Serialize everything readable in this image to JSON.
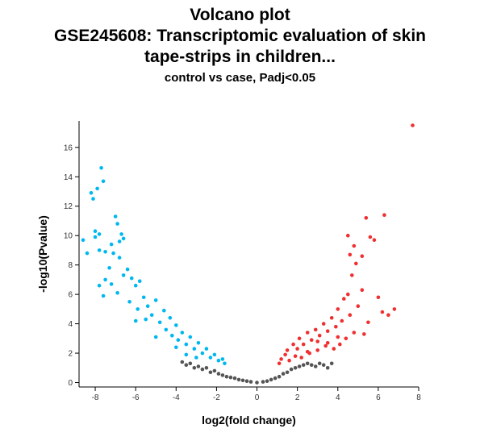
{
  "header": {
    "title_line1": "Volcano plot",
    "title_line2": "GSE245608: Transcriptomic evaluation of skin",
    "title_line3": "tape-strips in children...",
    "subtitle": "control vs case, Padj<0.05"
  },
  "chart_data": {
    "type": "scatter",
    "title": "Volcano plot GSE245608: Transcriptomic evaluation of skin tape-strips in children...",
    "subtitle": "control vs case, Padj<0.05",
    "xlabel": "log2(fold change)",
    "ylabel": "-log10(Pvalue)",
    "xlim": [
      -8.8,
      8.0
    ],
    "ylim": [
      -0.3,
      17.8
    ],
    "xticks": [
      -8,
      -6,
      -4,
      -2,
      0,
      2,
      4,
      6,
      8
    ],
    "yticks": [
      0,
      2,
      4,
      6,
      8,
      10,
      12,
      14,
      16
    ],
    "grid": false,
    "legend": "none",
    "colors": {
      "down": "#00b8f0",
      "up": "#f03030",
      "ns": "#555555"
    },
    "series": [
      {
        "group": "down",
        "points": [
          [
            -8.6,
            9.7
          ],
          [
            -8.4,
            8.8
          ],
          [
            -8.2,
            12.9
          ],
          [
            -8.1,
            12.5
          ],
          [
            -8.0,
            10.3
          ],
          [
            -8.0,
            9.9
          ],
          [
            -7.9,
            13.2
          ],
          [
            -7.8,
            10.1
          ],
          [
            -7.8,
            9.0
          ],
          [
            -7.7,
            14.6
          ],
          [
            -7.6,
            13.7
          ],
          [
            -7.5,
            8.9
          ],
          [
            -7.2,
            9.4
          ],
          [
            -7.1,
            8.8
          ],
          [
            -7.0,
            11.3
          ],
          [
            -6.9,
            10.8
          ],
          [
            -6.8,
            9.6
          ],
          [
            -6.8,
            8.5
          ],
          [
            -6.7,
            10.1
          ],
          [
            -6.6,
            9.8
          ],
          [
            -6.6,
            7.3
          ],
          [
            -7.2,
            6.7
          ],
          [
            -7.3,
            7.8
          ],
          [
            -7.5,
            7.0
          ],
          [
            -6.9,
            6.1
          ],
          [
            -7.6,
            5.9
          ],
          [
            -7.8,
            6.6
          ],
          [
            -6.4,
            7.7
          ],
          [
            -6.2,
            7.1
          ],
          [
            -6.3,
            5.5
          ],
          [
            -6.0,
            6.6
          ],
          [
            -5.8,
            6.9
          ],
          [
            -5.9,
            5.0
          ],
          [
            -5.6,
            5.8
          ],
          [
            -5.4,
            5.2
          ],
          [
            -5.2,
            4.6
          ],
          [
            -5.5,
            4.3
          ],
          [
            -5.0,
            5.6
          ],
          [
            -4.8,
            4.1
          ],
          [
            -4.6,
            4.9
          ],
          [
            -4.5,
            3.6
          ],
          [
            -4.3,
            4.4
          ],
          [
            -4.2,
            3.2
          ],
          [
            -4.0,
            3.9
          ],
          [
            -3.9,
            2.9
          ],
          [
            -3.7,
            3.4
          ],
          [
            -3.5,
            2.6
          ],
          [
            -3.3,
            3.1
          ],
          [
            -3.1,
            2.3
          ],
          [
            -2.9,
            2.7
          ],
          [
            -2.7,
            2.0
          ],
          [
            -2.5,
            2.3
          ],
          [
            -2.3,
            1.7
          ],
          [
            -2.1,
            1.9
          ],
          [
            -1.9,
            1.5
          ],
          [
            -1.7,
            1.6
          ],
          [
            -1.6,
            1.3
          ],
          [
            -6.0,
            4.2
          ],
          [
            -5.0,
            3.1
          ],
          [
            -4.0,
            2.4
          ],
          [
            -3.5,
            1.9
          ],
          [
            -3.0,
            1.7
          ]
        ]
      },
      {
        "group": "up",
        "points": [
          [
            1.1,
            1.3
          ],
          [
            1.2,
            1.6
          ],
          [
            1.4,
            1.9
          ],
          [
            1.5,
            2.2
          ],
          [
            1.6,
            1.5
          ],
          [
            1.8,
            2.6
          ],
          [
            1.9,
            1.8
          ],
          [
            2.0,
            2.3
          ],
          [
            2.1,
            3.0
          ],
          [
            2.2,
            1.7
          ],
          [
            2.3,
            2.6
          ],
          [
            2.5,
            3.4
          ],
          [
            2.6,
            2.0
          ],
          [
            2.7,
            2.9
          ],
          [
            2.9,
            3.6
          ],
          [
            3.0,
            2.2
          ],
          [
            3.1,
            3.2
          ],
          [
            3.3,
            4.0
          ],
          [
            3.4,
            2.5
          ],
          [
            3.5,
            3.5
          ],
          [
            3.7,
            4.4
          ],
          [
            3.8,
            2.3
          ],
          [
            3.9,
            3.8
          ],
          [
            4.0,
            5.0
          ],
          [
            4.1,
            2.6
          ],
          [
            4.2,
            4.2
          ],
          [
            4.3,
            5.7
          ],
          [
            4.4,
            3.0
          ],
          [
            4.5,
            6.0
          ],
          [
            4.6,
            4.6
          ],
          [
            4.7,
            7.3
          ],
          [
            4.8,
            3.4
          ],
          [
            4.9,
            8.1
          ],
          [
            5.0,
            5.2
          ],
          [
            5.2,
            6.3
          ],
          [
            5.3,
            3.3
          ],
          [
            5.4,
            11.2
          ],
          [
            5.6,
            9.9
          ],
          [
            5.8,
            9.7
          ],
          [
            6.0,
            5.8
          ],
          [
            6.3,
            11.4
          ],
          [
            6.5,
            4.6
          ],
          [
            6.8,
            5.0
          ],
          [
            4.5,
            10.0
          ],
          [
            4.8,
            9.3
          ],
          [
            5.2,
            8.6
          ],
          [
            4.6,
            8.7
          ],
          [
            7.7,
            17.5
          ],
          [
            3.0,
            2.8
          ],
          [
            2.5,
            2.1
          ],
          [
            3.5,
            2.7
          ],
          [
            4.0,
            3.1
          ],
          [
            5.5,
            4.1
          ],
          [
            6.2,
            4.8
          ]
        ]
      },
      {
        "group": "ns",
        "points": [
          [
            -3.7,
            1.4
          ],
          [
            -3.5,
            1.2
          ],
          [
            -3.3,
            1.3
          ],
          [
            -3.1,
            1.0
          ],
          [
            -2.9,
            1.1
          ],
          [
            -2.7,
            0.9
          ],
          [
            -2.5,
            1.0
          ],
          [
            -2.3,
            0.7
          ],
          [
            -2.1,
            0.8
          ],
          [
            -1.9,
            0.6
          ],
          [
            -1.7,
            0.5
          ],
          [
            -1.5,
            0.4
          ],
          [
            -1.3,
            0.35
          ],
          [
            -1.1,
            0.3
          ],
          [
            -0.9,
            0.2
          ],
          [
            -0.7,
            0.15
          ],
          [
            -0.5,
            0.1
          ],
          [
            -0.3,
            0.05
          ],
          [
            0.0,
            0.0
          ],
          [
            0.3,
            0.05
          ],
          [
            0.5,
            0.1
          ],
          [
            0.7,
            0.2
          ],
          [
            0.9,
            0.3
          ],
          [
            1.1,
            0.4
          ],
          [
            1.3,
            0.6
          ],
          [
            1.5,
            0.7
          ],
          [
            1.7,
            0.9
          ],
          [
            1.9,
            1.0
          ],
          [
            2.1,
            1.1
          ],
          [
            2.3,
            1.2
          ],
          [
            2.5,
            1.3
          ],
          [
            2.7,
            1.2
          ],
          [
            2.9,
            1.1
          ],
          [
            3.1,
            1.3
          ],
          [
            3.3,
            1.2
          ],
          [
            3.5,
            1.0
          ],
          [
            3.7,
            1.3
          ]
        ]
      }
    ]
  }
}
